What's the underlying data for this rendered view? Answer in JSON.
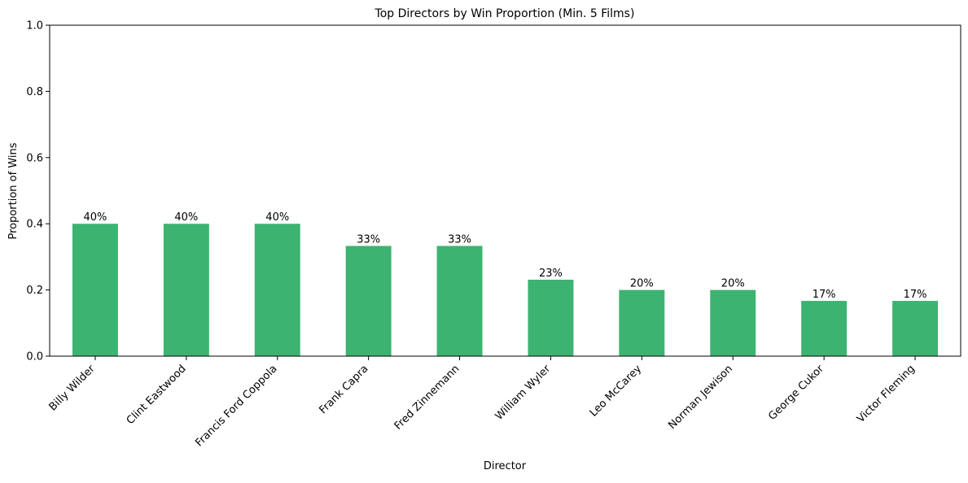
{
  "chart_data": {
    "type": "bar",
    "title": "Top Directors by Win Proportion (Min. 5 Films)",
    "xlabel": "Director",
    "ylabel": "Proportion of Wins",
    "ylim": [
      0,
      1.0
    ],
    "yticks": [
      "0.0",
      "0.2",
      "0.4",
      "0.6",
      "0.8",
      "1.0"
    ],
    "grid": false,
    "bar_color": "#3cb371",
    "categories": [
      "Billy Wilder",
      "Clint Eastwood",
      "Francis Ford Coppola",
      "Frank Capra",
      "Fred Zinnemann",
      "William Wyler",
      "Leo McCarey",
      "Norman Jewison",
      "George Cukor",
      "Victor Fleming"
    ],
    "values": [
      0.4,
      0.4,
      0.4,
      0.333,
      0.333,
      0.231,
      0.2,
      0.2,
      0.167,
      0.167
    ],
    "data_labels": [
      "40%",
      "40%",
      "40%",
      "33%",
      "33%",
      "23%",
      "20%",
      "20%",
      "17%",
      "17%"
    ]
  }
}
